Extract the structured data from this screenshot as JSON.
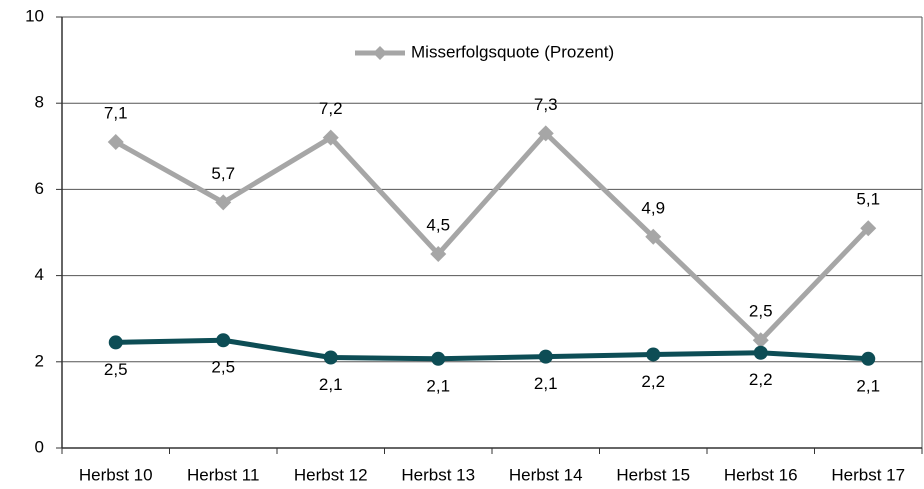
{
  "chart_data": {
    "type": "line",
    "categories": [
      "Herbst 10",
      "Herbst 11",
      "Herbst 12",
      "Herbst 13",
      "Herbst 14",
      "Herbst 15",
      "Herbst 16",
      "Herbst 17"
    ],
    "series": [
      {
        "name": "Misserfolgsquote (Prozent)",
        "color": "#a6a6a6",
        "marker": "diamond",
        "values": [
          7.1,
          5.7,
          7.2,
          4.5,
          7.3,
          4.9,
          2.5,
          5.1
        ],
        "value_labels": [
          "7,1",
          "5,7",
          "7,2",
          "4,5",
          "7,3",
          "4,9",
          "2,5",
          "5,1"
        ]
      },
      {
        "color": "#0d4d55",
        "marker": "circle",
        "values": [
          2.45,
          2.5,
          2.1,
          2.07,
          2.12,
          2.17,
          2.21,
          2.07
        ],
        "value_labels": [
          "2,5",
          "2,5",
          "2,1",
          "2,1",
          "2,1",
          "2,2",
          "2,2",
          "2,1"
        ]
      }
    ],
    "ylim": [
      0,
      10
    ],
    "yticks": [
      0,
      2,
      4,
      6,
      8,
      10
    ],
    "grid": true,
    "legend": "top"
  }
}
